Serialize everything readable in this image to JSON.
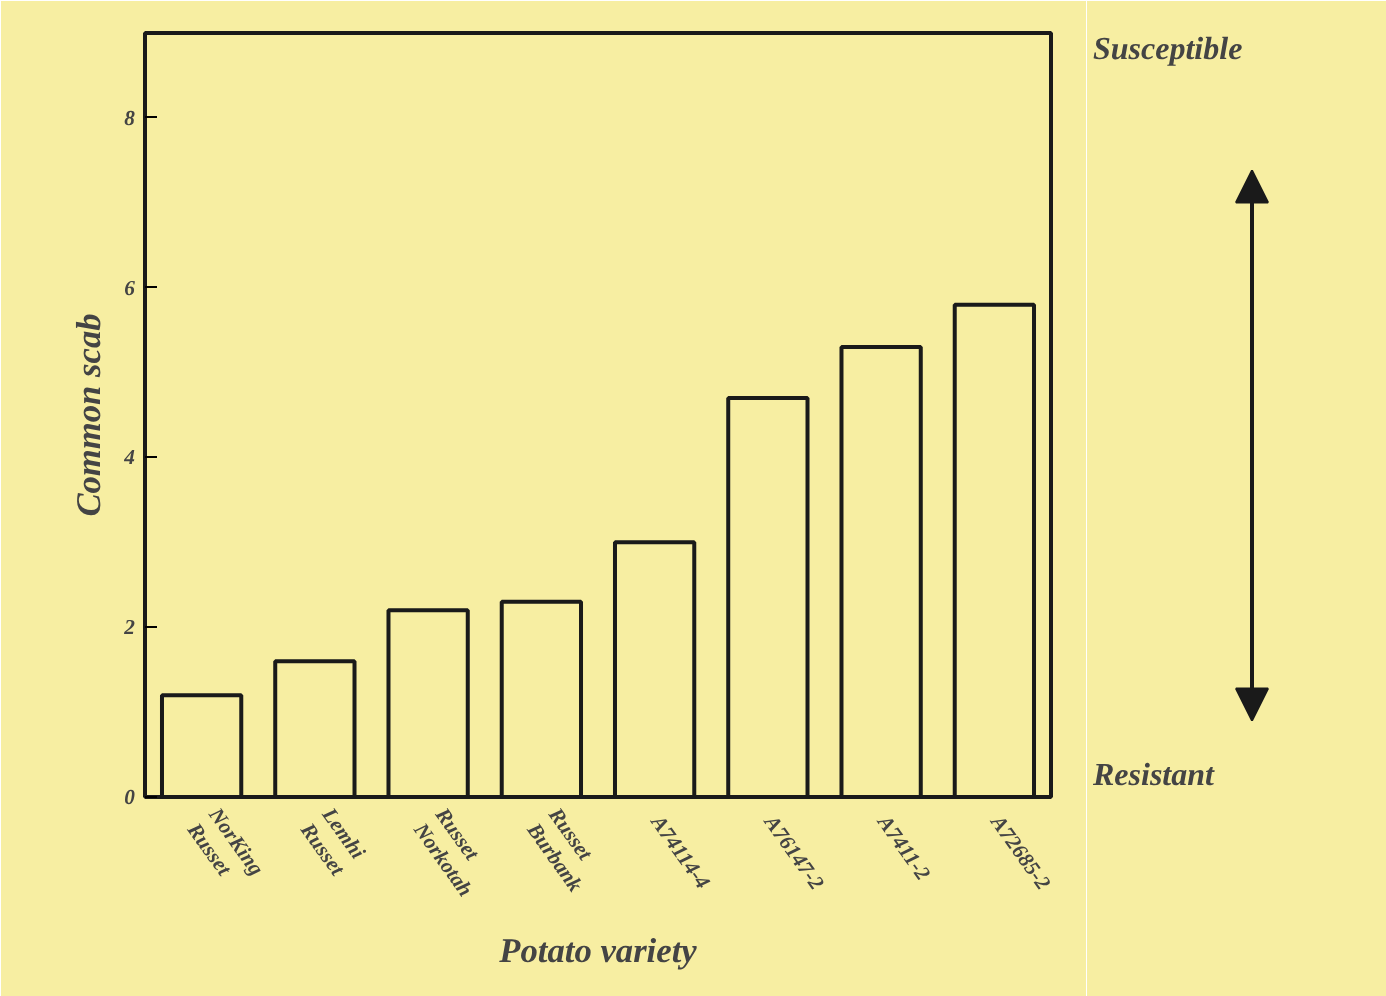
{
  "chart_data": {
    "type": "bar",
    "xlabel": "Potato variety",
    "ylabel": "Common scab",
    "categories": [
      "NorKing Russet",
      "Lemhi Russet",
      "Russet Norkotah",
      "Russet Burbank",
      "A74114-4",
      "A76147-2",
      "A7411-2",
      "A72685-2"
    ],
    "values": [
      1.2,
      1.6,
      2.2,
      2.3,
      3.0,
      4.7,
      5.3,
      5.8
    ],
    "color": "#1a1a1a",
    "ylim": [
      0,
      9
    ],
    "yticks": [
      0,
      2,
      4,
      6,
      8
    ],
    "grid": false,
    "annotations": [
      "Susceptible",
      "Resistant"
    ]
  }
}
